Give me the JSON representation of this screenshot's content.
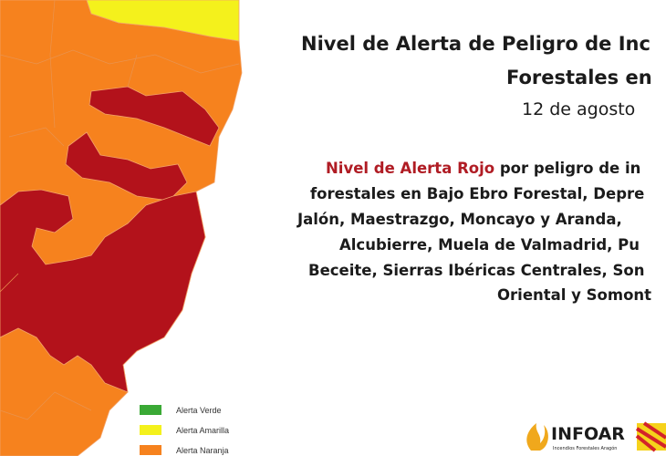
{
  "title_lines": [
    "Nivel de Alerta de Peligro de Inc",
    "Forestales en"
  ],
  "date": "12 de agosto",
  "body": {
    "highlight": "Nivel de Alerta Rojo",
    "lines": [
      " por peligro de in",
      "forestales en Bajo Ebro Forestal, Depre",
      "Jalón, Maestrazgo, Moncayo y Aranda,",
      "Alcubierre, Muela de Valmadrid, Pu",
      "Beceite, Sierras Ibéricas Centrales, Son",
      "Oriental y Somont"
    ]
  },
  "legend": [
    "Alerta Verde",
    "Alerta Amarilla",
    "Alerta Naranja"
  ],
  "logo": {
    "name": "INFOAR",
    "tagline": "Incendios Forestales Aragón"
  }
}
